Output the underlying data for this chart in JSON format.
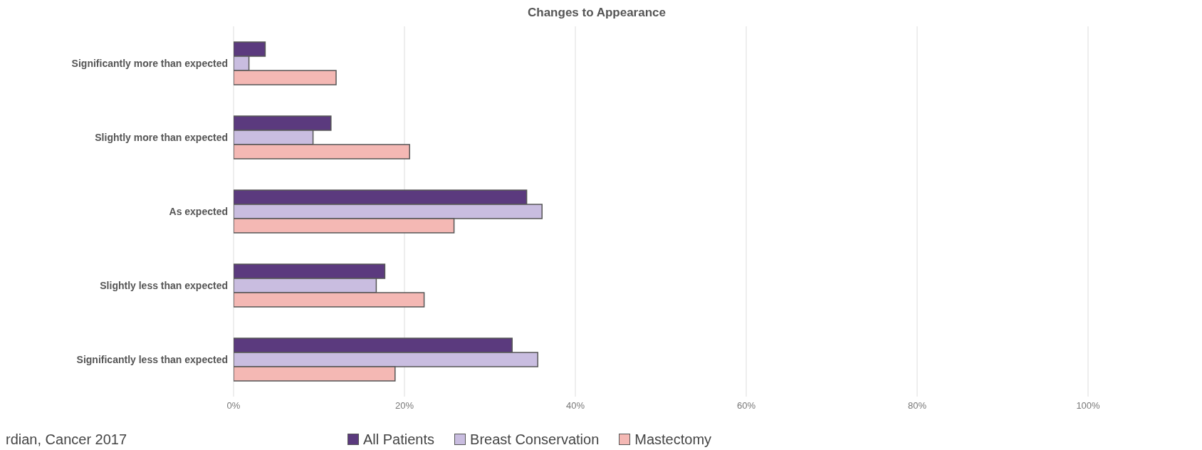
{
  "chart_data": {
    "type": "bar",
    "orientation": "horizontal",
    "title": "Changes to Appearance",
    "categories": [
      "Significantly more than expected",
      "Slightly more than expected",
      "As expected",
      "Slightly less than expected",
      "Significantly less than expected"
    ],
    "series": [
      {
        "name": "All Patients",
        "color": "#5b3a7e",
        "values": [
          3.7,
          11.4,
          34.3,
          17.7,
          32.6
        ]
      },
      {
        "name": "Breast Conservation",
        "color": "#c9bde0",
        "values": [
          1.8,
          9.3,
          36.1,
          16.7,
          35.6
        ]
      },
      {
        "name": "Mastectomy",
        "color": "#f4b8b4",
        "values": [
          12.0,
          20.6,
          25.8,
          22.3,
          18.9
        ]
      }
    ],
    "xlim": [
      0,
      100
    ],
    "xticks": [
      {
        "value": 0,
        "label": "0%"
      },
      {
        "value": 20,
        "label": "20%"
      },
      {
        "value": 40,
        "label": "40%"
      },
      {
        "value": 60,
        "label": "60%"
      },
      {
        "value": 80,
        "label": "80%"
      },
      {
        "value": 100,
        "label": "100%"
      }
    ],
    "grid": "x",
    "legend": "bottom",
    "annotations": [
      "rdian, Cancer 2017"
    ]
  }
}
